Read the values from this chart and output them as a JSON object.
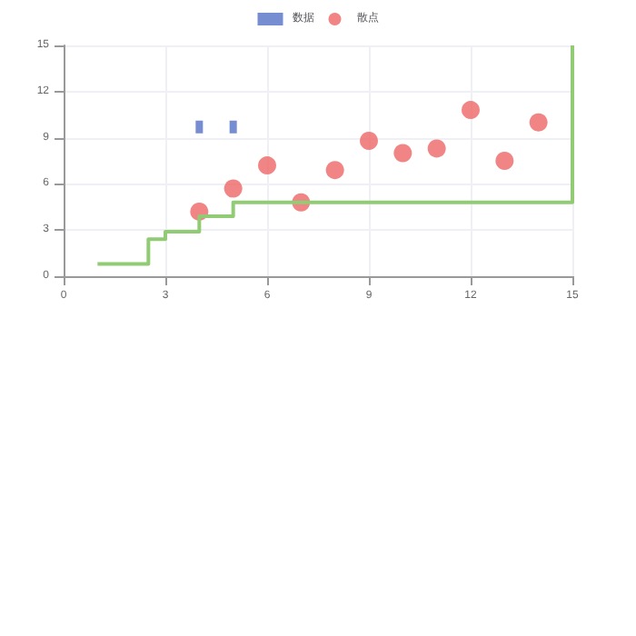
{
  "chart_data": {
    "type": "scatter",
    "xlim": [
      0,
      15
    ],
    "xticks": [
      0,
      3,
      6,
      9,
      12,
      15
    ],
    "ylim": [
      0,
      15
    ],
    "yticks": [
      0,
      3,
      6,
      9,
      12,
      15
    ],
    "grid": true,
    "legend": "top",
    "series": [
      {
        "name": "数据",
        "marker": "square",
        "color": "#5470c6",
        "x": [
          4,
          5
        ],
        "values": [
          9.7,
          9.7
        ]
      },
      {
        "name": "散点",
        "marker": "circle",
        "color": "#ee6666",
        "x": [
          4,
          5,
          6,
          7,
          8,
          9,
          10,
          11,
          12,
          13,
          14
        ],
        "values": [
          4.2,
          5.7,
          7.2,
          4.8,
          6.9,
          8.8,
          8.0,
          8.3,
          10.8,
          7.5,
          10.0
        ]
      },
      {
        "type": "step",
        "marker": "none",
        "color": "#91cc75",
        "x": [
          1,
          2.5,
          3,
          4,
          5,
          15,
          15
        ],
        "values": [
          0.8,
          2.4,
          2.9,
          3.9,
          4.8,
          4.8,
          15
        ]
      }
    ]
  }
}
